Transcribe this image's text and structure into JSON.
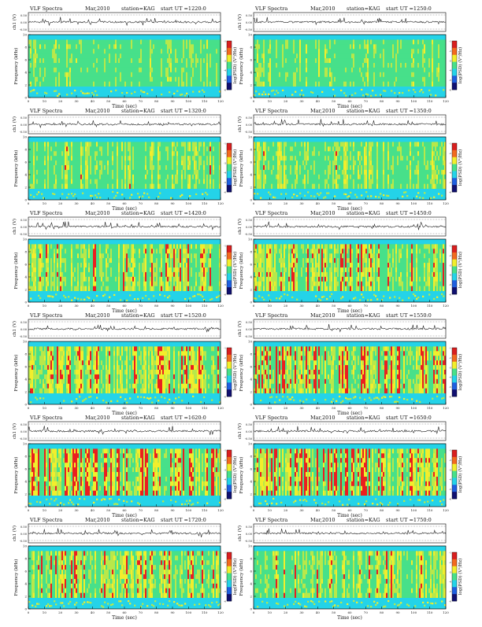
{
  "page": {
    "title": "VLF Spectra panels - station KAG - Mar 2010"
  },
  "panel_text": {
    "header_label": "VLF Spectra",
    "date": "Mar,2010",
    "station": "station=KAG",
    "start_prefix": "start  UT  ="
  },
  "axes_text": {
    "xlabel": "Time  (sec)",
    "ylabel_ch": "ch1 (V)",
    "ylabel_freq": "Frequency  (kHz)",
    "cbar_label": "log(PSD) (V²/Hz)",
    "ch_ticks": [
      "0.50",
      "0.00",
      "-0.50"
    ],
    "freq_ticks": [
      "0",
      "2",
      "4",
      "6",
      "8",
      "10"
    ],
    "time_ticks": [
      "0",
      "10",
      "20",
      "30",
      "40",
      "50",
      "60",
      "70",
      "80",
      "90",
      "100",
      "110",
      "120"
    ],
    "cbar_ticks": [
      "-1",
      "-2",
      "-3",
      "-4",
      "-5",
      "-6"
    ]
  },
  "colors": {
    "background": "#24d3e8",
    "low": "#47e08a",
    "mid": "#b8e84a",
    "high": "#f2ee2c",
    "max": "#ea1f1f",
    "trace": "#222222"
  },
  "chart_data": [
    {
      "type": "heatmap",
      "panel": 1,
      "start_ut": "1220:0",
      "intensity": 0.35,
      "x_range": [
        0,
        120
      ],
      "y_range": [
        0,
        10
      ],
      "ch_range": [
        -0.5,
        0.5
      ],
      "cbar_range": [
        -6,
        -1
      ]
    },
    {
      "type": "heatmap",
      "panel": 2,
      "start_ut": "1250:0",
      "intensity": 0.4,
      "x_range": [
        0,
        120
      ],
      "y_range": [
        0,
        10
      ],
      "ch_range": [
        -0.5,
        0.5
      ],
      "cbar_range": [
        -6,
        -1
      ]
    },
    {
      "type": "heatmap",
      "panel": 3,
      "start_ut": "1320:0",
      "intensity": 0.45,
      "x_range": [
        0,
        120
      ],
      "y_range": [
        0,
        10
      ],
      "ch_range": [
        -0.5,
        0.5
      ],
      "cbar_range": [
        -6,
        -1
      ]
    },
    {
      "type": "heatmap",
      "panel": 4,
      "start_ut": "1350:0",
      "intensity": 0.45,
      "x_range": [
        0,
        120
      ],
      "y_range": [
        0,
        10
      ],
      "ch_range": [
        -0.5,
        0.5
      ],
      "cbar_range": [
        -6,
        -1
      ]
    },
    {
      "type": "heatmap",
      "panel": 5,
      "start_ut": "1420:0",
      "intensity": 0.6,
      "x_range": [
        0,
        120
      ],
      "y_range": [
        0,
        10
      ],
      "ch_range": [
        -0.5,
        0.5
      ],
      "cbar_range": [
        -6,
        -1
      ]
    },
    {
      "type": "heatmap",
      "panel": 6,
      "start_ut": "1450:0",
      "intensity": 0.62,
      "x_range": [
        0,
        120
      ],
      "y_range": [
        0,
        10
      ],
      "ch_range": [
        -0.5,
        0.5
      ],
      "cbar_range": [
        -6,
        -1
      ]
    },
    {
      "type": "heatmap",
      "panel": 7,
      "start_ut": "1520:0",
      "intensity": 0.65,
      "x_range": [
        0,
        120
      ],
      "y_range": [
        0,
        10
      ],
      "ch_range": [
        -0.5,
        0.5
      ],
      "cbar_range": [
        -6,
        -1
      ]
    },
    {
      "type": "heatmap",
      "panel": 8,
      "start_ut": "1550:0",
      "intensity": 0.68,
      "x_range": [
        0,
        120
      ],
      "y_range": [
        0,
        10
      ],
      "ch_range": [
        -0.5,
        0.5
      ],
      "cbar_range": [
        -6,
        -1
      ]
    },
    {
      "type": "heatmap",
      "panel": 9,
      "start_ut": "1620:0",
      "intensity": 0.7,
      "x_range": [
        0,
        120
      ],
      "y_range": [
        0,
        10
      ],
      "ch_range": [
        -0.5,
        0.5
      ],
      "cbar_range": [
        -6,
        -1
      ]
    },
    {
      "type": "heatmap",
      "panel": 10,
      "start_ut": "1650:0",
      "intensity": 0.7,
      "x_range": [
        0,
        120
      ],
      "y_range": [
        0,
        10
      ],
      "ch_range": [
        -0.5,
        0.5
      ],
      "cbar_range": [
        -6,
        -1
      ]
    },
    {
      "type": "heatmap",
      "panel": 11,
      "start_ut": "1720:0",
      "intensity": 0.6,
      "x_range": [
        0,
        120
      ],
      "y_range": [
        0,
        10
      ],
      "ch_range": [
        -0.5,
        0.5
      ],
      "cbar_range": [
        -6,
        -1
      ]
    },
    {
      "type": "heatmap",
      "panel": 12,
      "start_ut": "1750:0",
      "intensity": 0.55,
      "x_range": [
        0,
        120
      ],
      "y_range": [
        0,
        10
      ],
      "ch_range": [
        -0.5,
        0.5
      ],
      "cbar_range": [
        -6,
        -1
      ]
    }
  ]
}
